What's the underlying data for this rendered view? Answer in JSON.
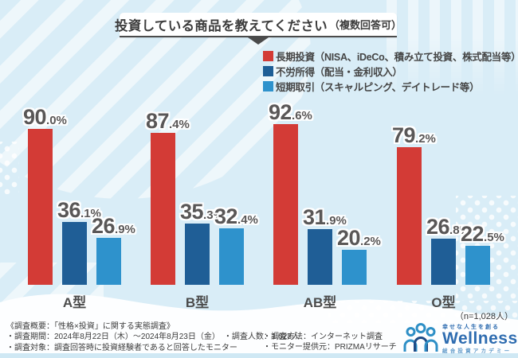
{
  "title": {
    "main": "投資している商品を教えてください",
    "note": "（複数回答可）"
  },
  "sample_note": "（n=1,028人）",
  "colors": {
    "background": "#d9edf7",
    "long_term_red": "#d33b36",
    "passive_income_blue": "#1f5e96",
    "short_term_lightblue": "#2e92cc",
    "label_text": "#595757"
  },
  "chart_data": {
    "type": "bar",
    "title": "投資している商品を教えてください（複数回答可）",
    "categories": [
      "A型",
      "B型",
      "AB型",
      "O型"
    ],
    "series": [
      {
        "name": "長期投資（NISA、iDeCo、積み立て投資、株式配当等）",
        "color": "#d33b36",
        "values": [
          90.0,
          87.4,
          92.6,
          79.2
        ]
      },
      {
        "name": "不労所得（配当・金利収入）",
        "color": "#1f5e96",
        "values": [
          36.1,
          35.3,
          31.9,
          26.8
        ]
      },
      {
        "name": "短期取引（スキャルピング、デイトレード等）",
        "color": "#2e92cc",
        "values": [
          26.9,
          32.4,
          20.2,
          22.5
        ]
      }
    ],
    "value_suffix": "%",
    "ylim": [
      0,
      100
    ],
    "grid": false,
    "legend_position": "top-right",
    "sample_note": "（n=1,028人）"
  },
  "footer": {
    "col1": [
      "《調査概要：「性格×投資」に関する実態調査》",
      "・調査期間：2024年8月22日（木）〜2024年8月23日（金）　・調査人数：1,028人",
      "・調査対象：調査回答時に投資経験者であると回答したモニター"
    ],
    "col2": [
      "・調査方法：インターネット調査",
      "・モニター提供元：PRIZMAリサーチ"
    ]
  },
  "logo": {
    "tagline": "幸せな人生を創る",
    "brand": "Wellness",
    "subtitle": "総合投資アカデミー"
  }
}
